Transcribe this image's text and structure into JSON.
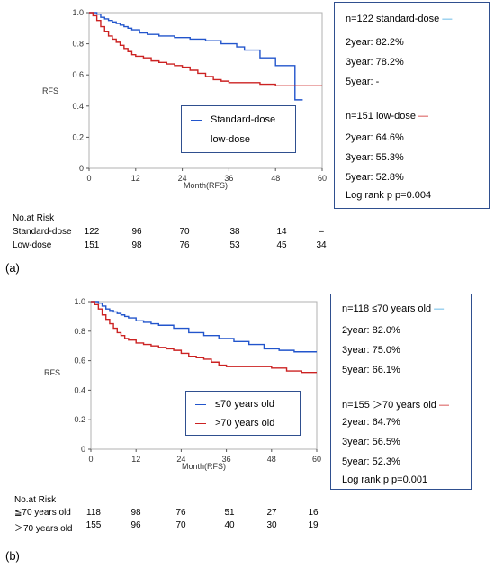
{
  "chart_data": [
    {
      "type": "line",
      "title": "",
      "xlabel": "Month(RFS)",
      "ylabel": "RFS",
      "xlim": [
        0,
        60
      ],
      "ylim": [
        0,
        1.0
      ],
      "x_ticks": [
        "0",
        "12",
        "24",
        "36",
        "48",
        "60"
      ],
      "y_ticks": [
        "0",
        "0.2",
        "0.4",
        "0.6",
        "0.8",
        "1.0"
      ],
      "grid": false,
      "legend_placement": "center-right inside plot",
      "series": [
        {
          "name": "Standard-dose",
          "color": "#2255cc",
          "x": [
            0,
            2,
            3,
            4,
            5,
            6,
            7,
            8,
            9,
            10,
            11,
            13,
            15,
            18,
            22,
            26,
            30,
            34,
            38,
            40,
            44,
            48,
            50,
            53,
            54,
            55
          ],
          "y": [
            1.0,
            0.99,
            0.97,
            0.96,
            0.95,
            0.94,
            0.93,
            0.92,
            0.91,
            0.9,
            0.89,
            0.87,
            0.86,
            0.85,
            0.84,
            0.83,
            0.82,
            0.8,
            0.78,
            0.76,
            0.71,
            0.66,
            0.66,
            0.44,
            0.44,
            0.44
          ]
        },
        {
          "name": "low-dose",
          "color": "#cc2222",
          "x": [
            0,
            1,
            2,
            3,
            4,
            5,
            6,
            7,
            8,
            9,
            10,
            11,
            12,
            14,
            16,
            18,
            20,
            22,
            24,
            26,
            28,
            30,
            32,
            34,
            36,
            40,
            44,
            48,
            52,
            60
          ],
          "y": [
            1.0,
            0.98,
            0.95,
            0.91,
            0.88,
            0.85,
            0.83,
            0.81,
            0.79,
            0.77,
            0.75,
            0.73,
            0.72,
            0.71,
            0.69,
            0.68,
            0.67,
            0.66,
            0.65,
            0.63,
            0.61,
            0.59,
            0.57,
            0.56,
            0.55,
            0.55,
            0.54,
            0.53,
            0.53,
            0.53
          ]
        }
      ]
    },
    {
      "type": "line",
      "title": "",
      "xlabel": "Month(RFS)",
      "ylabel": "RFS",
      "xlim": [
        0,
        60
      ],
      "ylim": [
        0,
        1.0
      ],
      "x_ticks": [
        "0",
        "12",
        "24",
        "36",
        "48",
        "60"
      ],
      "y_ticks": [
        "0",
        "0.2",
        "0.4",
        "0.6",
        "0.8",
        "1.0"
      ],
      "grid": false,
      "legend_placement": "center-right inside plot",
      "series": [
        {
          "name": "≤70 years old",
          "color": "#2255cc",
          "x": [
            0,
            2,
            3,
            4,
            5,
            6,
            7,
            8,
            9,
            10,
            12,
            14,
            16,
            18,
            22,
            26,
            30,
            34,
            38,
            42,
            46,
            50,
            54,
            60
          ],
          "y": [
            1.0,
            0.99,
            0.97,
            0.95,
            0.94,
            0.93,
            0.92,
            0.91,
            0.9,
            0.89,
            0.87,
            0.86,
            0.85,
            0.84,
            0.82,
            0.79,
            0.77,
            0.75,
            0.73,
            0.71,
            0.68,
            0.67,
            0.66,
            0.66
          ]
        },
        {
          "name": ">70 years old",
          "color": "#cc2222",
          "x": [
            0,
            1,
            2,
            3,
            4,
            5,
            6,
            7,
            8,
            9,
            10,
            12,
            14,
            16,
            18,
            20,
            22,
            24,
            26,
            28,
            30,
            32,
            34,
            36,
            40,
            44,
            48,
            52,
            56,
            60
          ],
          "y": [
            1.0,
            0.98,
            0.95,
            0.91,
            0.88,
            0.85,
            0.82,
            0.79,
            0.77,
            0.75,
            0.74,
            0.72,
            0.71,
            0.7,
            0.69,
            0.68,
            0.67,
            0.65,
            0.63,
            0.62,
            0.61,
            0.59,
            0.57,
            0.56,
            0.56,
            0.56,
            0.55,
            0.53,
            0.52,
            0.52
          ]
        }
      ]
    }
  ],
  "panel_a": {
    "label": "(a)",
    "legend": [
      "Standard-dose",
      "low-dose"
    ],
    "stats": [
      "n=122 standard-dose",
      "2year: 82.2%",
      "3year: 78.2%",
      "5year: -",
      "n=151 low-dose",
      "2year: 64.6%",
      "3year: 55.3%",
      "5year: 52.8%",
      "Log rank p   p=0.004"
    ],
    "risk_title": "No.at Risk",
    "risk_rows": [
      {
        "label": "Standard-dose",
        "values": [
          "122",
          "96",
          "70",
          "38",
          "14",
          "–"
        ]
      },
      {
        "label": "Low-dose",
        "values": [
          "151",
          "98",
          "76",
          "53",
          "45",
          "34"
        ]
      }
    ]
  },
  "panel_b": {
    "label": "(b)",
    "legend": [
      "≤70 years old",
      ">70 years old"
    ],
    "stats": [
      "n=118  ≤70 years old",
      "2year: 82.0%",
      "3year: 75.0%",
      "5year: 66.1%",
      "n=155  ＞70 years old",
      "2year: 64.7%",
      "3year: 56.5%",
      "5year: 52.3%",
      "Log rank p    p=0.001"
    ],
    "risk_title": "No.at Risk",
    "risk_rows": [
      {
        "label": "≦70 years old",
        "values": [
          "118",
          "98",
          "76",
          "51",
          "27",
          "16"
        ]
      },
      {
        "label": "＞70 years old",
        "values": [
          "155",
          "96",
          "70",
          "40",
          "30",
          "19"
        ]
      }
    ]
  }
}
